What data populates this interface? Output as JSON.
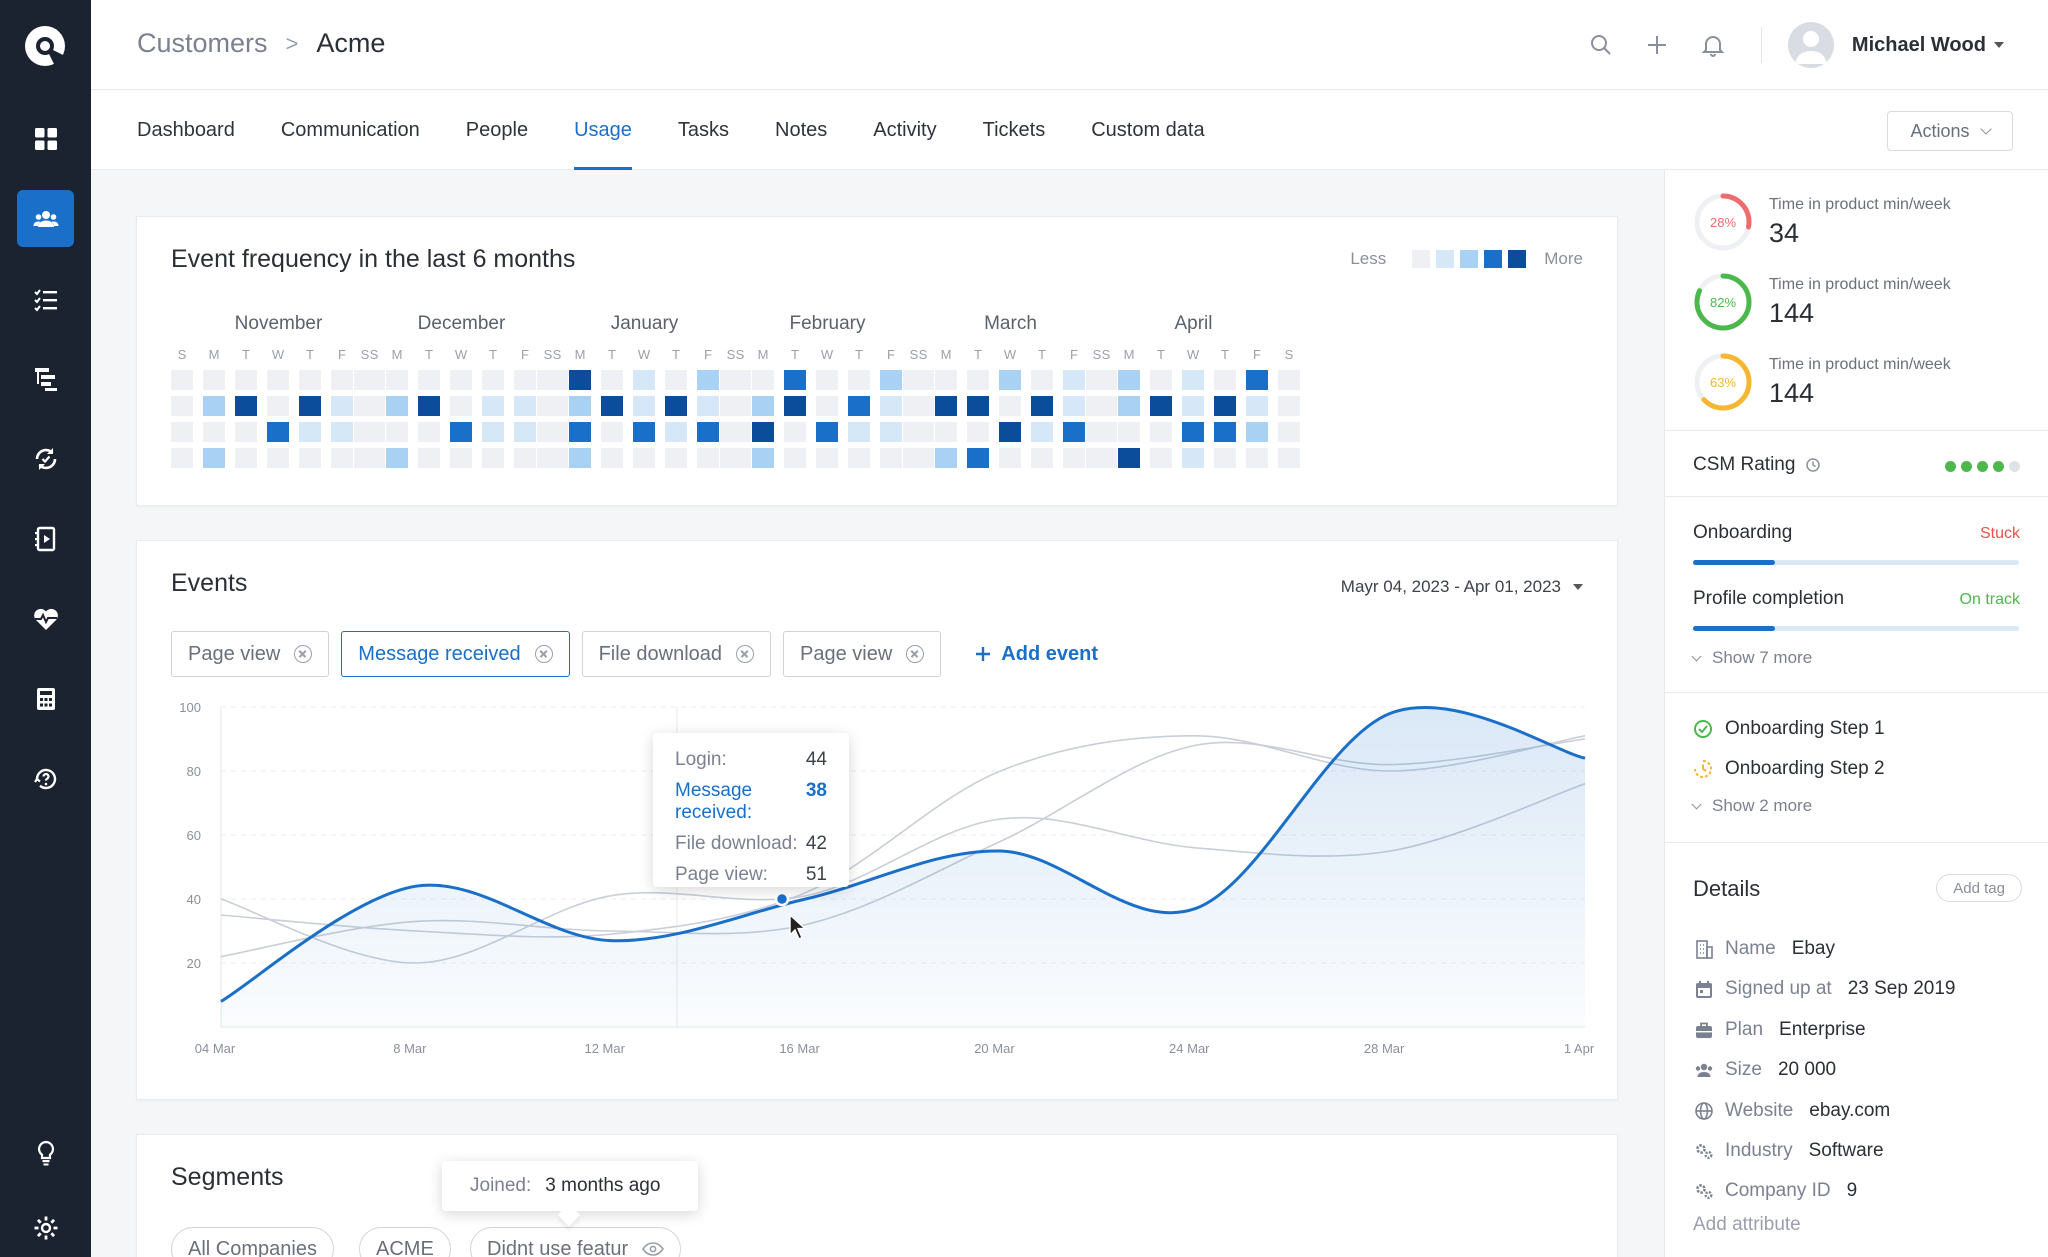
{
  "app": {
    "accent": "#1a6fc9",
    "sidebar_bg": "#1b2230"
  },
  "sidebar": {
    "items": [
      {
        "name": "dashboard-icon"
      },
      {
        "name": "people-icon",
        "active": true
      },
      {
        "name": "checklist-icon"
      },
      {
        "name": "hierarchy-icon"
      },
      {
        "name": "sync-icon"
      },
      {
        "name": "playbook-icon"
      },
      {
        "name": "health-icon"
      },
      {
        "name": "calculator-icon"
      },
      {
        "name": "help-icon"
      },
      {
        "name": "lightbulb-icon"
      },
      {
        "name": "gear-icon"
      }
    ]
  },
  "breadcrumb": {
    "parent": "Customers",
    "separator": ">",
    "current": "Acme"
  },
  "user": {
    "name": "Michael Wood"
  },
  "tabs": [
    {
      "label": "Dashboard"
    },
    {
      "label": "Communication"
    },
    {
      "label": "People"
    },
    {
      "label": "Usage",
      "active": true
    },
    {
      "label": "Tasks"
    },
    {
      "label": "Notes"
    },
    {
      "label": "Activity"
    },
    {
      "label": "Tickets"
    },
    {
      "label": "Custom data"
    }
  ],
  "actions_label": "Actions",
  "heatmap": {
    "title": "Event frequency in the last 6 months",
    "legend_less": "Less",
    "legend_more": "More",
    "colors": [
      "#eef0f3",
      "#d6e8f8",
      "#a8d1f3",
      "#1a6fc9",
      "#0b4d9a"
    ],
    "day_letters": [
      "S",
      "M",
      "T",
      "W",
      "T",
      "F",
      "S"
    ],
    "months": [
      {
        "name": "November",
        "cells": [
          0,
          0,
          0,
          0,
          0,
          0,
          0,
          0,
          2,
          4,
          0,
          4,
          1,
          0,
          0,
          0,
          0,
          3,
          1,
          1,
          0,
          0,
          2,
          0,
          0,
          0,
          0,
          0
        ]
      },
      {
        "name": "December",
        "cells": [
          0,
          0,
          0,
          0,
          0,
          0,
          0,
          0,
          2,
          4,
          0,
          1,
          1,
          0,
          0,
          0,
          0,
          3,
          1,
          1,
          0,
          0,
          2,
          0,
          0,
          0,
          0,
          0
        ]
      },
      {
        "name": "January",
        "cells": [
          0,
          4,
          0,
          1,
          0,
          2,
          0,
          0,
          2,
          4,
          1,
          4,
          1,
          0,
          0,
          3,
          0,
          3,
          1,
          3,
          0,
          0,
          2,
          0,
          0,
          0,
          0,
          0
        ]
      },
      {
        "name": "February",
        "cells": [
          0,
          0,
          3,
          0,
          0,
          2,
          0,
          0,
          2,
          4,
          0,
          3,
          1,
          0,
          0,
          4,
          0,
          3,
          1,
          1,
          0,
          0,
          2,
          0,
          0,
          0,
          0,
          0
        ]
      },
      {
        "name": "March",
        "cells": [
          0,
          0,
          0,
          2,
          0,
          1,
          0,
          0,
          4,
          4,
          0,
          4,
          1,
          0,
          0,
          0,
          0,
          4,
          1,
          3,
          0,
          0,
          2,
          3,
          0,
          0,
          0,
          0
        ]
      },
      {
        "name": "April",
        "cells": [
          0,
          2,
          0,
          1,
          0,
          3,
          0,
          0,
          2,
          4,
          1,
          4,
          1,
          0,
          0,
          0,
          0,
          3,
          3,
          2,
          0,
          0,
          4,
          0,
          1,
          0,
          0,
          0
        ]
      }
    ]
  },
  "events": {
    "title": "Events",
    "date_range": "Mayr 04, 2023 - Apr 01, 2023",
    "chips": [
      {
        "label": "Page view"
      },
      {
        "label": "Message received",
        "selected": true
      },
      {
        "label": "File download"
      },
      {
        "label": "Page view"
      }
    ],
    "add_event": "Add event",
    "tooltip": [
      {
        "label": "Login:",
        "value": "44"
      },
      {
        "label": "Message received:",
        "value": "38",
        "highlight": true
      },
      {
        "label": "File download:",
        "value": "42"
      },
      {
        "label": "Page view:",
        "value": "51"
      }
    ]
  },
  "chart_data": {
    "type": "line",
    "x": [
      "04 Mar",
      "8 Mar",
      "12 Mar",
      "16 Mar",
      "20 Mar",
      "24 Mar",
      "28 Mar",
      "1 Apr"
    ],
    "ylim": [
      0,
      100
    ],
    "y_ticks": [
      "100",
      "80",
      "60",
      "40",
      "20"
    ],
    "series": [
      {
        "name": "Message received",
        "values": [
          8,
          44,
          27,
          40,
          55,
          37,
          98,
          84
        ]
      },
      {
        "values": [
          35,
          30,
          29,
          42,
          80,
          91,
          80,
          91
        ]
      },
      {
        "values": [
          40,
          20,
          41,
          41,
          65,
          56,
          55,
          76
        ]
      },
      {
        "values": [
          22,
          33,
          30,
          32,
          58,
          88,
          82,
          90
        ]
      }
    ]
  },
  "segments": {
    "title": "Segments",
    "tooltip_label": "Joined:",
    "tooltip_value": "3 months ago",
    "chips": [
      {
        "label": "All Companies"
      },
      {
        "label": "ACME"
      },
      {
        "label": "Didnt use featur"
      }
    ]
  },
  "metrics": [
    {
      "pct": "28%",
      "label": "Time in product min/week",
      "value": "34",
      "color": "#f06b6b",
      "level": 0.28
    },
    {
      "pct": "82%",
      "label": "Time in product min/week",
      "value": "144",
      "color": "#4cb84c",
      "level": 0.82
    },
    {
      "pct": "63%",
      "label": "Time in product min/week",
      "value": "144",
      "color": "#f5b731",
      "level": 0.63
    }
  ],
  "csm": {
    "label": "CSM Rating",
    "rating": 4,
    "max": 5,
    "color": "#4cb84c"
  },
  "progress": [
    {
      "label": "Onboarding",
      "status": "Stuck",
      "status_color": "#e5534b",
      "level": 0.25
    },
    {
      "label": "Profile completion",
      "status": "On track",
      "status_color": "#4cb84c",
      "level": 0.25
    }
  ],
  "show_more_1": "Show 7 more",
  "steps": [
    {
      "label": "Onboarding Step 1",
      "state": "done"
    },
    {
      "label": "Onboarding Step 2",
      "state": "pending"
    }
  ],
  "show_more_2": "Show 2 more",
  "details": {
    "title": "Details",
    "add_tag": "Add tag",
    "rows": [
      {
        "key": "Name",
        "value": "Ebay",
        "icon": "building-icon"
      },
      {
        "key": "Signed up at",
        "value": "23 Sep 2019",
        "icon": "calendar-icon"
      },
      {
        "key": "Plan",
        "value": "Enterprise",
        "icon": "briefcase-icon"
      },
      {
        "key": "Size",
        "value": "20 000",
        "icon": "people-icon"
      },
      {
        "key": "Website",
        "value": "ebay.com",
        "icon": "globe-icon"
      },
      {
        "key": "Industry",
        "value": "Software",
        "icon": "gears-icon"
      },
      {
        "key": "Company ID",
        "value": "9",
        "icon": "gears-icon"
      }
    ],
    "add_attribute": "Add attribute"
  }
}
